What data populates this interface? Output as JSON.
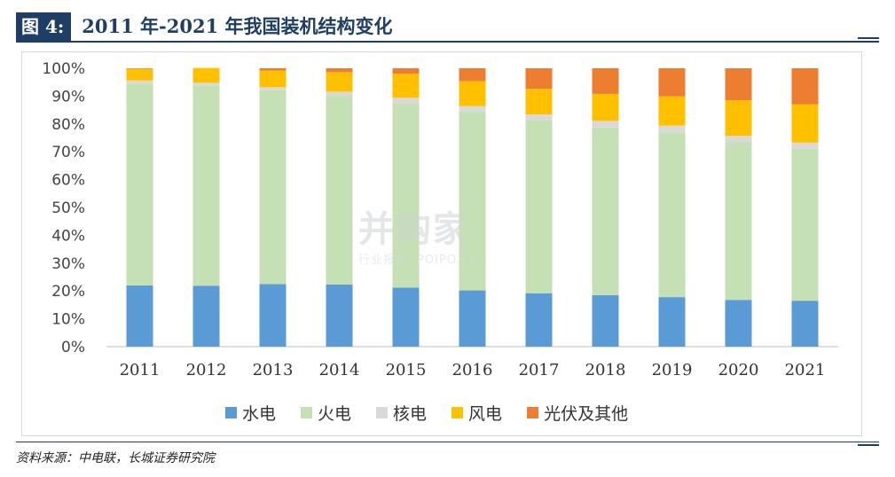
{
  "header": {
    "figure_label": "图 4:",
    "figure_title": "2011 年-2021 年我国装机结构变化"
  },
  "footer": {
    "source": "资料来源：中电联，长城证券研究院"
  },
  "watermark": {
    "main": "并购家",
    "sub": "行业报告 IPOIPO.CN"
  },
  "chart_data": {
    "type": "bar",
    "stacked": true,
    "percent": true,
    "categories": [
      "2011",
      "2012",
      "2013",
      "2014",
      "2015",
      "2016",
      "2017",
      "2018",
      "2019",
      "2020",
      "2021"
    ],
    "y_ticks": [
      "0%",
      "10%",
      "20%",
      "30%",
      "40%",
      "50%",
      "60%",
      "70%",
      "80%",
      "90%",
      "100%"
    ],
    "ylim": [
      0,
      100
    ],
    "grid": false,
    "legend_position": "bottom",
    "series": [
      {
        "name": "水电",
        "color": "#5b9bd5",
        "values": [
          22.0,
          21.9,
          22.5,
          22.3,
          21.2,
          20.2,
          19.2,
          18.5,
          17.8,
          16.8,
          16.5
        ]
      },
      {
        "name": "火电",
        "color": "#c5e0b4",
        "values": [
          72.5,
          71.8,
          69.6,
          67.8,
          66.3,
          64.2,
          62.2,
          60.2,
          59.2,
          56.6,
          54.6
        ]
      },
      {
        "name": "核电",
        "color": "#d9d9d9",
        "values": [
          1.1,
          1.1,
          1.1,
          1.5,
          1.9,
          2.0,
          2.0,
          2.4,
          2.4,
          2.3,
          2.2
        ]
      },
      {
        "name": "风电",
        "color": "#ffc000",
        "values": [
          4.2,
          5.3,
          6.0,
          7.0,
          8.6,
          9.0,
          9.2,
          9.7,
          10.5,
          12.8,
          13.8
        ]
      },
      {
        "name": "光伏及其他",
        "color": "#ed7d31",
        "values": [
          0.2,
          0.0,
          0.8,
          1.4,
          2.0,
          4.6,
          7.4,
          9.2,
          10.1,
          11.5,
          12.9
        ]
      }
    ]
  }
}
